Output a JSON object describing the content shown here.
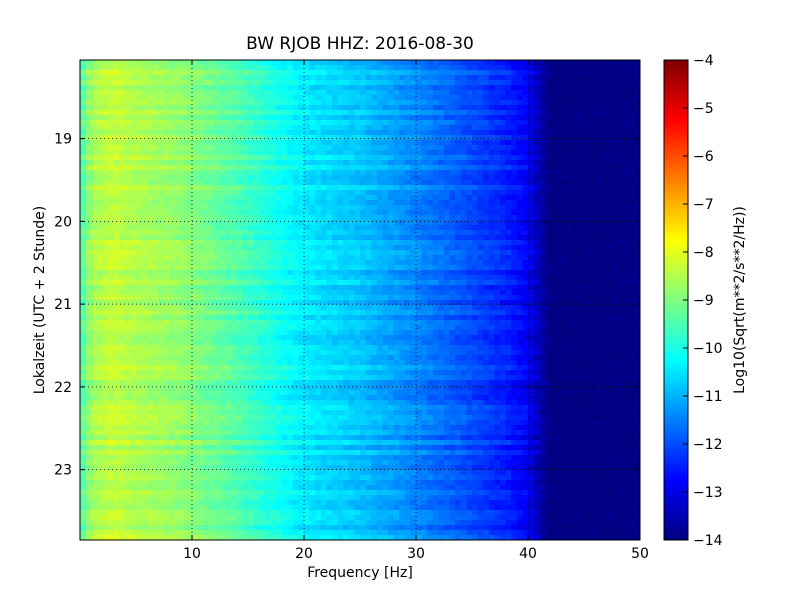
{
  "chart_data": {
    "type": "heatmap",
    "title": "BW RJOB HHZ: 2016-08-30",
    "xlabel": "Frequency [Hz]",
    "ylabel": "Lokalzeit (UTC + 2 Stunde)",
    "xlim": [
      0,
      50
    ],
    "ylim": [
      18.05,
      23.85
    ],
    "xticks": [
      10,
      20,
      30,
      40,
      50
    ],
    "yticks": [
      19,
      20,
      21,
      22,
      23
    ],
    "grid": true,
    "colorbar": {
      "label": "Log10(Sqrt(m**2/s**2/Hz))",
      "range": [
        -14,
        -4
      ],
      "ticks": [
        -4,
        -5,
        -6,
        -7,
        -8,
        -9,
        -10,
        -11,
        -12,
        -13,
        -14
      ],
      "colormap": "jet"
    },
    "profile": {
      "frequency_hz": [
        0,
        1,
        3,
        5,
        8,
        10,
        13,
        15,
        18,
        20,
        25,
        30,
        35,
        38,
        40,
        41,
        42,
        50
      ],
      "log10_amplitude": [
        -9.6,
        -8.6,
        -8.3,
        -8.5,
        -8.7,
        -8.9,
        -9.3,
        -9.6,
        -10.1,
        -10.4,
        -10.8,
        -11.4,
        -12.0,
        -12.4,
        -12.8,
        -13.5,
        -14.0,
        -14.0
      ]
    }
  }
}
